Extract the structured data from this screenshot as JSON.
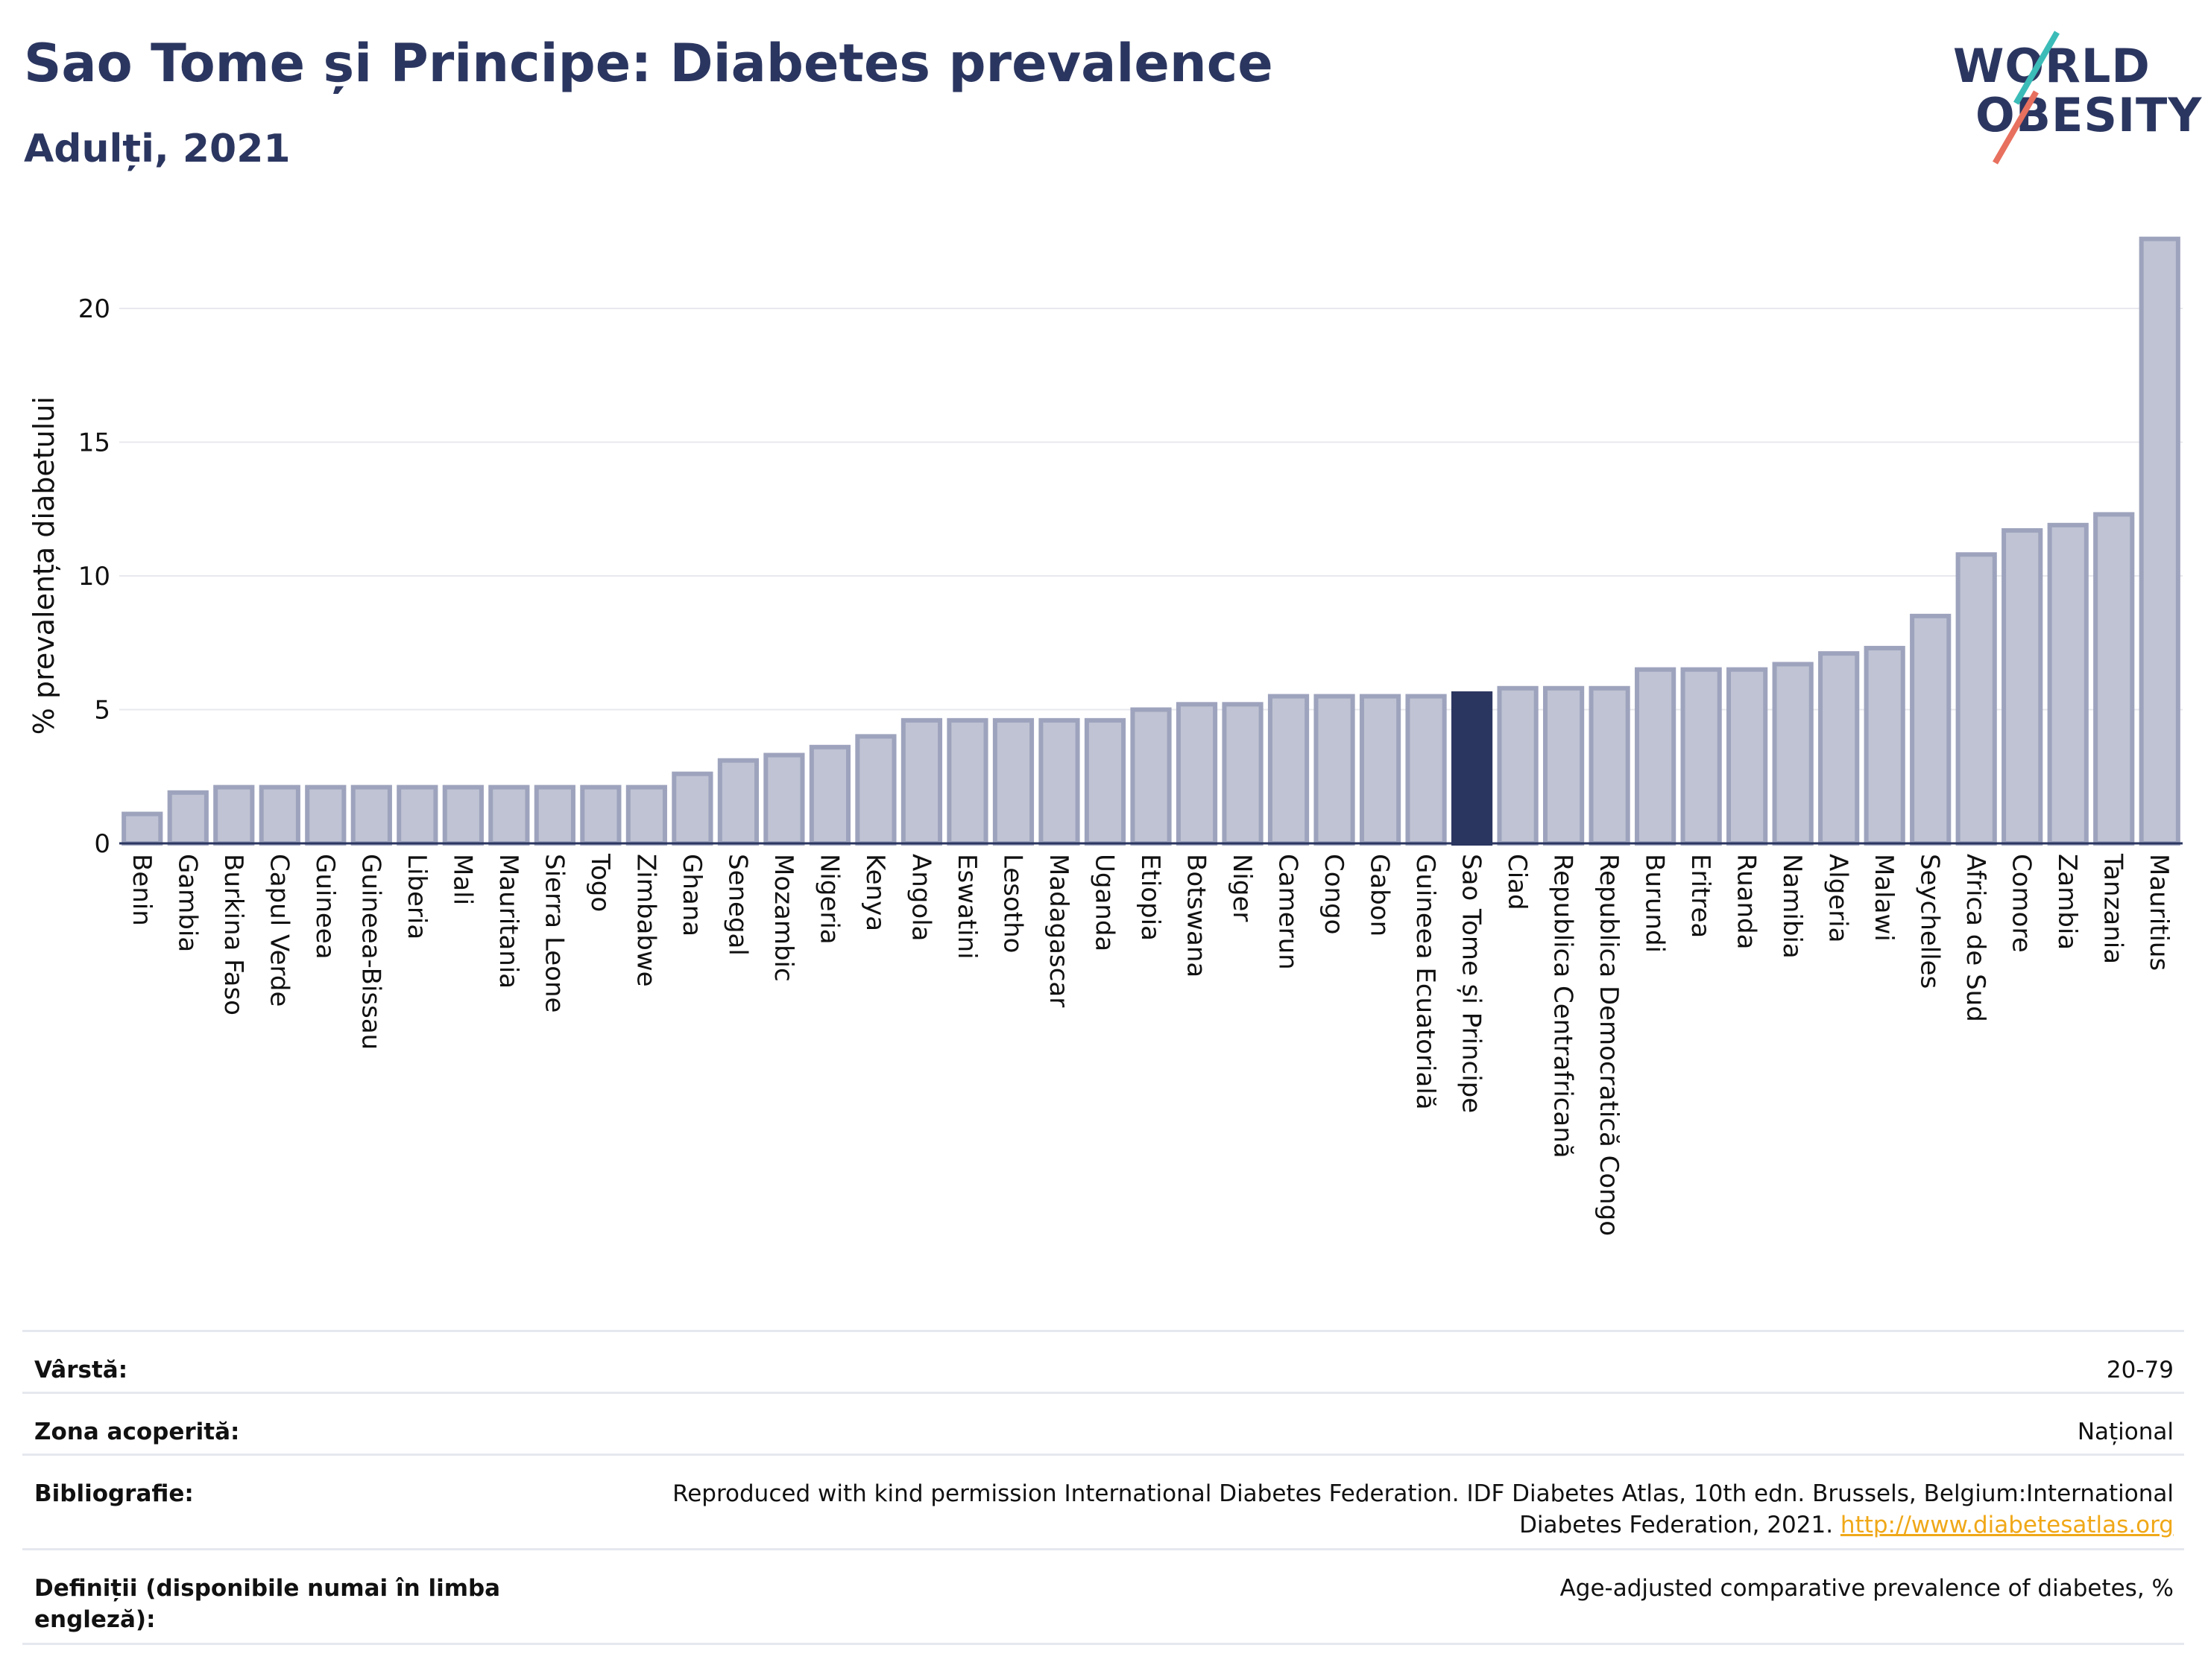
{
  "header": {
    "title": "Sao Tome și Principe: Diabetes prevalence",
    "subtitle": "Adulți, 2021"
  },
  "logo": {
    "line1": "WORLD",
    "line2": "OBESITY",
    "accent_colors": [
      "#3bbcb8",
      "#e8705e"
    ]
  },
  "colors": {
    "bar": "#bfc3d3",
    "bar_stroke": "#9ea3bd",
    "highlight": "#2b3660",
    "grid": "#e8e9ee",
    "axis": "#2b3660"
  },
  "chart_data": {
    "type": "bar",
    "title": "Sao Tome și Principe: Diabetes prevalence",
    "subtitle": "Adulți, 2021",
    "ylabel": "% prevalența diabetului",
    "xlabel": "",
    "ylim": [
      0,
      23
    ],
    "yticks": [
      0,
      5,
      10,
      15,
      20
    ],
    "grid": true,
    "highlight": "Sao Tome și Principe",
    "categories": [
      "Benin",
      "Gambia",
      "Burkina Faso",
      "Capul Verde",
      "Guineea",
      "Guineea-Bissau",
      "Liberia",
      "Mali",
      "Mauritania",
      "Sierra Leone",
      "Togo",
      "Zimbabwe",
      "Ghana",
      "Senegal",
      "Mozambic",
      "Nigeria",
      "Kenya",
      "Angola",
      "Eswatini",
      "Lesotho",
      "Madagascar",
      "Uganda",
      "Etiopia",
      "Botswana",
      "Niger",
      "Camerun",
      "Congo",
      "Gabon",
      "Guineea Ecuatorială",
      "Sao Tome și Principe",
      "Ciad",
      "Republica Centrafricană",
      "Republica Democratică Congo",
      "Burundi",
      "Eritrea",
      "Ruanda",
      "Namibia",
      "Algeria",
      "Malawi",
      "Seychelles",
      "Africa de Sud",
      "Comore",
      "Zambia",
      "Tanzania",
      "Mauritius"
    ],
    "values": [
      1.1,
      1.9,
      2.1,
      2.1,
      2.1,
      2.1,
      2.1,
      2.1,
      2.1,
      2.1,
      2.1,
      2.1,
      2.6,
      3.1,
      3.3,
      3.6,
      4.0,
      4.6,
      4.6,
      4.6,
      4.6,
      4.6,
      5.0,
      5.2,
      5.2,
      5.5,
      5.5,
      5.5,
      5.5,
      5.6,
      5.8,
      5.8,
      5.8,
      6.5,
      6.5,
      6.5,
      6.7,
      7.1,
      7.3,
      8.5,
      10.8,
      11.7,
      11.9,
      12.3,
      22.6
    ]
  },
  "info_table": [
    {
      "label": "Vârstă:",
      "value": "20-79"
    },
    {
      "label": "Zona acoperită:",
      "value": "Național"
    },
    {
      "label": "Bibliografie:",
      "value": "Reproduced with kind permission International Diabetes Federation.  IDF Diabetes Atlas, 10th edn. Brussels, Belgium:International Diabetes Federation, 2021. ",
      "link": "http://www.diabetesatlas.org"
    },
    {
      "label": "Definiții (disponibile numai în limba engleză):",
      "value": "Age-adjusted comparative prevalence of diabetes, %"
    }
  ]
}
